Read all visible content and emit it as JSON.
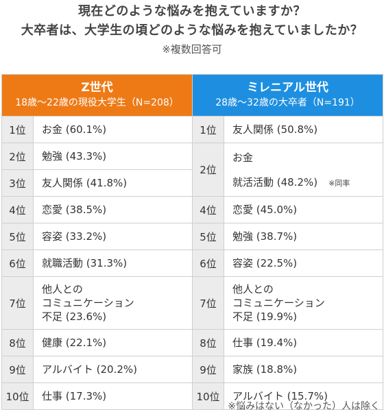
{
  "title": {
    "line1": "現在どのような悩みを抱えていますか？",
    "line2": "大卒者は、大学生の頃どのような悩みを抱えていましたか？",
    "note": "※複数回答可"
  },
  "colors": {
    "genz": "#ee7a16",
    "millennial": "#1e8fe0",
    "rank_bg": "#ececec"
  },
  "columns": {
    "genz": {
      "title": "Z世代",
      "subtitle": "18歳～22歳の現役大学生（N=208）"
    },
    "millennial": {
      "title": "ミレニアル世代",
      "subtitle": "28歳～32歳の大卒者（N=191）"
    }
  },
  "rows": [
    {
      "genz_rank": "1位",
      "genz": "お金 (60.1%)",
      "mill_rank": "1位",
      "mill": "友人関係 (50.8%)"
    },
    {
      "genz_rank": "2位",
      "genz": "勉強 (43.3%)",
      "mill_rank": "2位",
      "mill": "お金"
    },
    {
      "genz_rank": "3位",
      "genz": "友人関係 (41.8%)",
      "mill": "就活活動 (48.2%)",
      "mill_note": "※同率"
    },
    {
      "genz_rank": "4位",
      "genz": "恋愛 (38.5%)",
      "mill_rank": "4位",
      "mill": "恋愛 (45.0%)"
    },
    {
      "genz_rank": "5位",
      "genz": "容姿 (33.2%)",
      "mill_rank": "5位",
      "mill": "勉強 (38.7%)"
    },
    {
      "genz_rank": "6位",
      "genz": "就職活動 (31.3%)",
      "mill_rank": "6位",
      "mill": "容姿 (22.5%)"
    },
    {
      "genz_rank": "7位",
      "genz_l1": "他人との",
      "genz_l2": "コミュニケーション",
      "genz_l3": "不足 (23.6%)",
      "mill_rank": "7位",
      "mill_l1": "他人との",
      "mill_l2": "コミュニケーション",
      "mill_l3": "不足 (19.9%)"
    },
    {
      "genz_rank": "8位",
      "genz": "健康 (22.1%)",
      "mill_rank": "8位",
      "mill": "仕事 (19.4%)"
    },
    {
      "genz_rank": "9位",
      "genz": "アルバイト (20.2%)",
      "mill_rank": "9位",
      "mill": "家族 (18.8%)"
    },
    {
      "genz_rank": "10位",
      "genz": "仕事 (17.3%)",
      "mill_rank": "10位",
      "mill": "アルバイト (15.7%)"
    }
  ],
  "footnote": "※悩みはない（なかった）人は除く"
}
